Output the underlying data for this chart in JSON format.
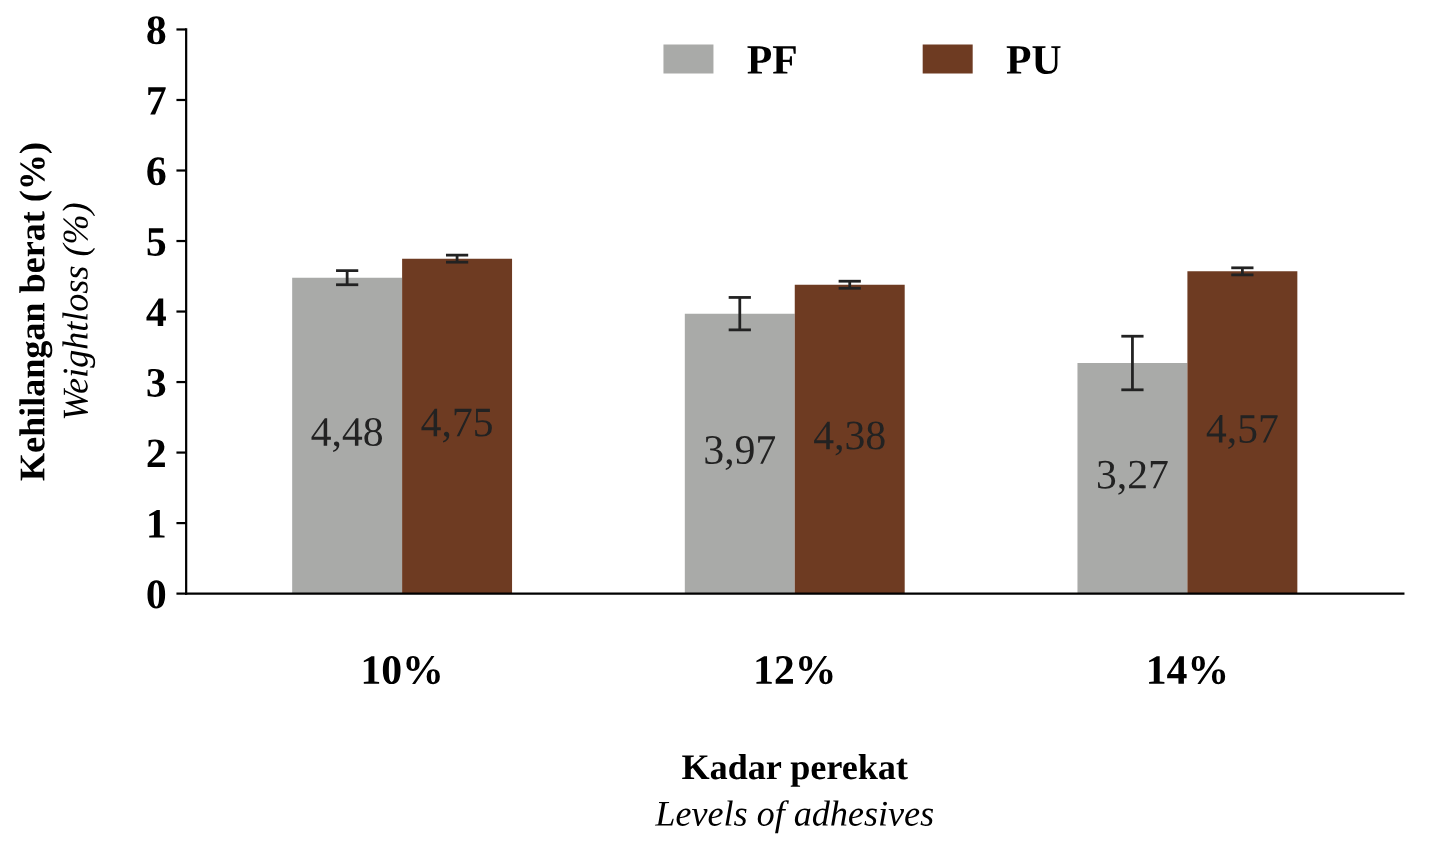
{
  "chart_data": {
    "type": "bar",
    "categories": [
      "10%",
      "12%",
      "14%"
    ],
    "series": [
      {
        "name": "PF",
        "color": "#a9aaa8",
        "values": [
          4.48,
          3.97,
          3.27
        ],
        "value_labels": [
          "4,48",
          "3,97",
          "3,27"
        ],
        "errors": [
          0.1,
          0.23,
          0.38
        ]
      },
      {
        "name": "PU",
        "color": "#6e3b22",
        "values": [
          4.75,
          4.38,
          4.57
        ],
        "value_labels": [
          "4,75",
          "4,38",
          "4,57"
        ],
        "errors": [
          0.05,
          0.05,
          0.05
        ]
      }
    ],
    "xlabel": "Kadar perekat\nLevels of adhesives",
    "ylabel": "Kehilangan berat (%)\nWeightloss (%)",
    "ylim": [
      0,
      8
    ],
    "yticks": [
      0,
      1,
      2,
      3,
      4,
      5,
      6,
      7,
      8
    ],
    "grid": false,
    "legend": "top right"
  }
}
